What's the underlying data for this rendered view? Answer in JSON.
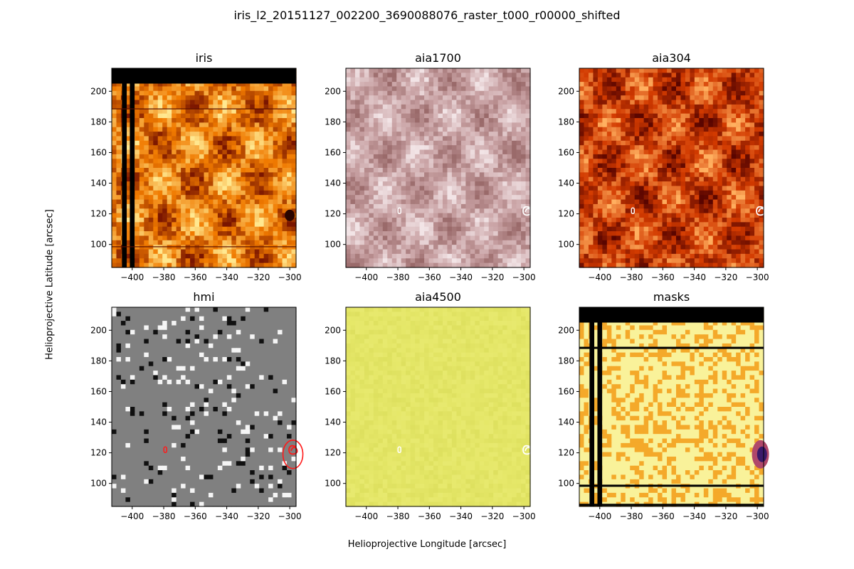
{
  "figure": {
    "title": "iris_l2_20151127_002200_3690088076_raster_t000_r00000_shifted",
    "xlabel": "Helioprojective Longitude [arcsec]",
    "ylabel": "Helioprojective Latitude [arcsec]"
  },
  "chart_data": [
    {
      "type": "heatmap",
      "title": "iris",
      "colormap": "afmhot",
      "xlim": [
        -413,
        -296
      ],
      "ylim": [
        85,
        215
      ],
      "xticks": [
        -400,
        -380,
        -360,
        -340,
        -320,
        -300
      ],
      "yticks": [
        100,
        120,
        140,
        160,
        180,
        200
      ],
      "colors": {
        "low": "#7a1500",
        "mid": "#f07a00",
        "high": "#ffe890"
      }
    },
    {
      "type": "heatmap",
      "title": "aia1700",
      "colormap": "sdoaia1700",
      "xlim": [
        -413,
        -296
      ],
      "ylim": [
        85,
        215
      ],
      "xticks": [
        -400,
        -380,
        -360,
        -340,
        -320,
        -300
      ],
      "yticks": [
        100,
        120,
        140,
        160,
        180,
        200
      ],
      "colors": {
        "low": "#9a6a6a",
        "mid": "#c9a2a4",
        "high": "#f2e4e6"
      }
    },
    {
      "type": "heatmap",
      "title": "aia304",
      "colormap": "sdoaia304",
      "xlim": [
        -413,
        -296
      ],
      "ylim": [
        85,
        215
      ],
      "xticks": [
        -400,
        -380,
        -360,
        -340,
        -320,
        -300
      ],
      "yticks": [
        100,
        120,
        140,
        160,
        180,
        200
      ],
      "colors": {
        "low": "#5a0500",
        "mid": "#d23a00",
        "high": "#ffb060"
      }
    },
    {
      "type": "heatmap",
      "title": "hmi",
      "colormap": "gray",
      "xlim": [
        -413,
        -296
      ],
      "ylim": [
        85,
        215
      ],
      "xticks": [
        -400,
        -380,
        -360,
        -340,
        -320,
        -300
      ],
      "yticks": [
        100,
        120,
        140,
        160,
        180,
        200
      ],
      "colors": {
        "low": "#000000",
        "mid": "#808080",
        "high": "#ffffff"
      }
    },
    {
      "type": "heatmap",
      "title": "aia4500",
      "colormap": "sdoaia4500",
      "xlim": [
        -413,
        -296
      ],
      "ylim": [
        85,
        215
      ],
      "xticks": [
        -400,
        -380,
        -360,
        -340,
        -320,
        -300
      ],
      "yticks": [
        100,
        120,
        140,
        160,
        180,
        200
      ],
      "colors": {
        "low": "#cfd24a",
        "mid": "#e6e86a",
        "high": "#eeee8a"
      }
    },
    {
      "type": "heatmap",
      "title": "masks",
      "colormap": "inferno",
      "xlim": [
        -413,
        -296
      ],
      "ylim": [
        85,
        215
      ],
      "xticks": [
        -400,
        -380,
        -360,
        -340,
        -320,
        -300
      ],
      "yticks": [
        100,
        120,
        140,
        160,
        180,
        200
      ],
      "colors": {
        "low": "#f4a92a",
        "mid": "#f9f29a",
        "high": "#3a1a6a"
      }
    }
  ]
}
